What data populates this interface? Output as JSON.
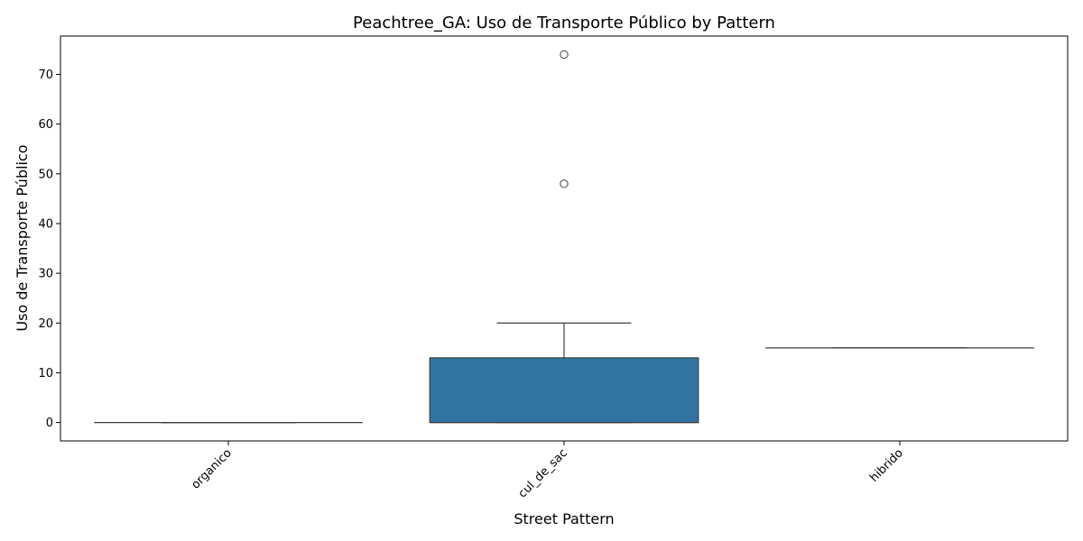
{
  "chart_data": {
    "type": "box",
    "title": "Peachtree_GA: Uso de Transporte Público by Pattern",
    "xlabel": "Street Pattern",
    "ylabel": "Uso de Transporte Público",
    "categories": [
      "organico",
      "cul_de_sac",
      "hibrido"
    ],
    "ylim": [
      -3.7,
      77.7
    ],
    "yticks": [
      0,
      10,
      20,
      30,
      40,
      50,
      60,
      70
    ],
    "grid": false,
    "boxes": [
      {
        "category": "organico",
        "whisker_low": 0,
        "q1": 0,
        "median": 0,
        "q3": 0,
        "whisker_high": 0,
        "outliers": []
      },
      {
        "category": "cul_de_sac",
        "whisker_low": 0,
        "q1": 0,
        "median": 0,
        "q3": 13,
        "whisker_high": 20,
        "outliers": [
          48,
          74
        ]
      },
      {
        "category": "hibrido",
        "whisker_low": 15,
        "q1": 15,
        "median": 15,
        "q3": 15,
        "whisker_high": 15,
        "outliers": []
      }
    ],
    "box_color": "#3274a1",
    "line_color": "#3d3d3d"
  }
}
